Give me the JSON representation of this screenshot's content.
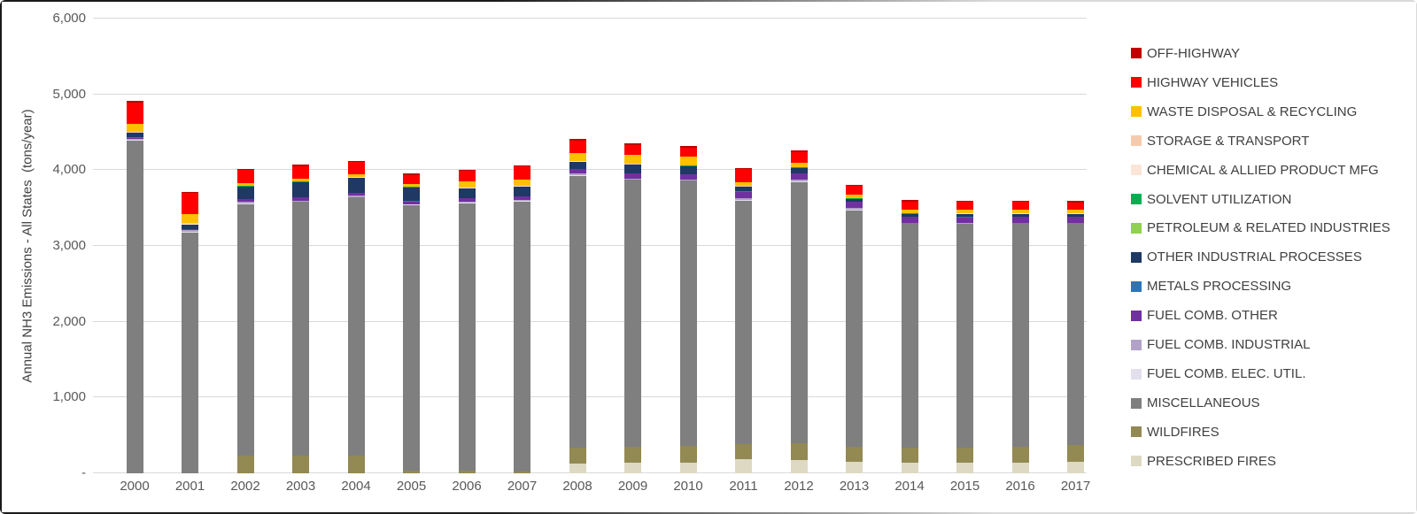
{
  "chart_data": {
    "type": "bar",
    "variant": "stacked-vertical",
    "title": "",
    "ylabel": "Annual NH3 Emissions - All States  (tons/year)",
    "xlabel": "",
    "ylim": [
      0,
      6000
    ],
    "grid": "horizontal",
    "legend_position": "right",
    "ytick_labels": [
      "-",
      "1,000",
      "2,000",
      "3,000",
      "4,000",
      "5,000",
      "6,000"
    ],
    "ytick_values": [
      0,
      1000,
      2000,
      3000,
      4000,
      5000,
      6000
    ],
    "categories": [
      "2000",
      "2001",
      "2002",
      "2003",
      "2004",
      "2005",
      "2006",
      "2007",
      "2008",
      "2009",
      "2010",
      "2011",
      "2012",
      "2013",
      "2014",
      "2015",
      "2016",
      "2017"
    ],
    "series": [
      {
        "name": "OFF-HIGHWAY",
        "color": "#C00000",
        "values": [
          25,
          20,
          15,
          15,
          15,
          15,
          15,
          15,
          20,
          20,
          20,
          15,
          20,
          15,
          15,
          15,
          15,
          15
        ]
      },
      {
        "name": "HIGHWAY VEHICLES",
        "color": "#FF0000",
        "values": [
          275,
          280,
          172,
          163,
          163,
          117,
          141,
          175,
          167,
          136,
          116,
          180,
          136,
          113,
          109,
          107,
          105,
          100
        ]
      },
      {
        "name": "WASTE DISPOSAL & RECYCLING",
        "color": "#FFC000",
        "values": [
          105,
          120,
          35,
          35,
          35,
          35,
          77,
          79,
          98,
          117,
          113,
          46,
          58,
          47,
          43,
          43,
          43,
          43
        ]
      },
      {
        "name": "STORAGE & TRANSPORT",
        "color": "#F6CBAD",
        "values": [
          10,
          8,
          5,
          5,
          5,
          5,
          5,
          5,
          6,
          5,
          5,
          5,
          5,
          5,
          5,
          5,
          5,
          5
        ]
      },
      {
        "name": "CHEMICAL & ALLIED PRODUCT MFG",
        "color": "#FBE5D6",
        "values": [
          6,
          7,
          5,
          5,
          5,
          5,
          5,
          5,
          5,
          5,
          5,
          5,
          5,
          5,
          5,
          5,
          5,
          5
        ]
      },
      {
        "name": "SOLVENT UTILIZATION",
        "color": "#00B050",
        "values": [
          2,
          2,
          2,
          2,
          2,
          2,
          2,
          5,
          2,
          2,
          2,
          2,
          2,
          2,
          2,
          2,
          2,
          2
        ]
      },
      {
        "name": "PETROLEUM & RELATED INDUSTRIES",
        "color": "#92D050",
        "values": [
          2,
          2,
          2,
          2,
          2,
          2,
          2,
          5,
          2,
          2,
          2,
          2,
          2,
          2,
          2,
          2,
          2,
          2
        ]
      },
      {
        "name": "OTHER INDUSTRIAL PROCESSES",
        "color": "#1F3864",
        "values": [
          54,
          55,
          163,
          198,
          198,
          183,
          125,
          120,
          93,
          108,
          105,
          59,
          70,
          35,
          35,
          35,
          35,
          35
        ]
      },
      {
        "name": "METALS PROCESSING",
        "color": "#2E75B6",
        "values": [
          8,
          5,
          5,
          5,
          5,
          5,
          5,
          5,
          5,
          5,
          5,
          5,
          5,
          5,
          5,
          5,
          5,
          5
        ]
      },
      {
        "name": "FUEL COMB. OTHER",
        "color": "#7030A0",
        "values": [
          12,
          15,
          35,
          43,
          35,
          35,
          40,
          40,
          53,
          74,
          70,
          89,
          82,
          81,
          78,
          78,
          75,
          75
        ]
      },
      {
        "name": "FUEL COMB. INDUSTRIAL",
        "color": "#B2A2C7",
        "values": [
          15,
          20,
          20,
          10,
          15,
          8,
          20,
          20,
          20,
          5,
          8,
          20,
          20,
          20,
          3,
          3,
          3,
          3
        ]
      },
      {
        "name": "FUEL COMB. ELEC. UTIL.",
        "color": "#E3DFEC",
        "values": [
          12,
          15,
          11,
          6,
          9,
          4,
          10,
          13,
          18,
          3,
          4,
          11,
          15,
          15,
          1,
          1,
          1,
          1
        ]
      },
      {
        "name": "MISCELLANEOUS",
        "color": "#7F7F7F",
        "values": [
          4390,
          3170,
          3319,
          3350,
          3405,
          3505,
          3525,
          3555,
          3584,
          3525,
          3505,
          3213,
          3443,
          3117,
          2961,
          2955,
          2950,
          2933
        ]
      },
      {
        "name": "WILDFIRES",
        "color": "#938953",
        "values": [
          0,
          0,
          233,
          233,
          233,
          35,
          35,
          25,
          213,
          213,
          215,
          199,
          222,
          202,
          205,
          205,
          214,
          222
        ]
      },
      {
        "name": "PRESCRIBED FIRES",
        "color": "#DDD9C3",
        "values": [
          0,
          0,
          0,
          0,
          0,
          0,
          0,
          0,
          125,
          137,
          143,
          183,
          175,
          148,
          137,
          137,
          137,
          148
        ]
      }
    ],
    "stacking_note": "bars stack bottom-to-top in reverse legend order (PRESCRIBED FIRES at bottom, OFF-HIGHWAY on top)",
    "colors": {
      "gridline": "#d9d9d9",
      "tick_text": "#595959",
      "legend_text": "#404040",
      "axis_title_text": "#404040"
    }
  }
}
